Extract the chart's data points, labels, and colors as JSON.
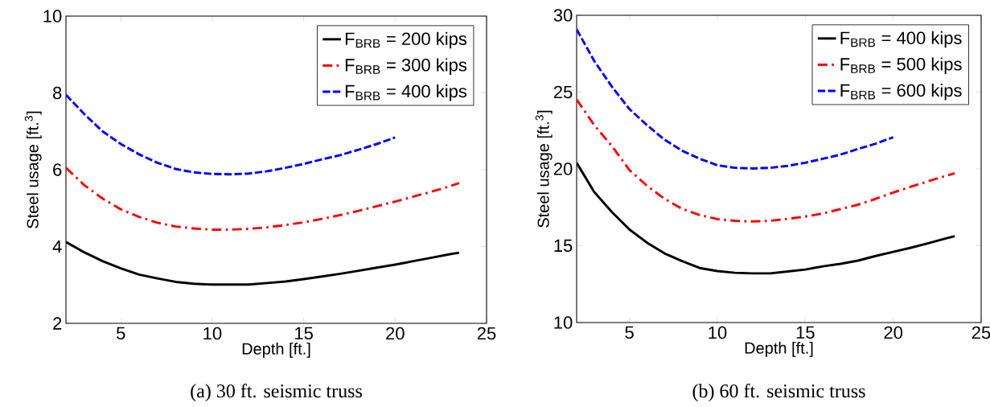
{
  "chart_data": [
    {
      "type": "line",
      "title": "(a) 30 ft. seismic truss",
      "xlabel": "Depth [ft.]",
      "ylabel": "Steel usage [ft.$^{3}$]",
      "xlim": [
        2,
        25
      ],
      "ylim": [
        2,
        10
      ],
      "xticks": [
        5,
        10,
        15,
        20,
        25
      ],
      "yticks": [
        2,
        4,
        6,
        8,
        10
      ],
      "grid": false,
      "legend": "top right",
      "marker": "none",
      "x": [
        2,
        3,
        4,
        5,
        6,
        7,
        8,
        9,
        10,
        11,
        12,
        13,
        14,
        15,
        16,
        17,
        18,
        19,
        20,
        21,
        22,
        23,
        23.5
      ],
      "series": [
        {
          "name": "F$_{BRB}$ = 200 kips",
          "color": "#000000",
          "line_style": "solid",
          "values": [
            4.12,
            3.85,
            3.62,
            3.43,
            3.27,
            3.17,
            3.08,
            3.03,
            3.01,
            3.01,
            3.01,
            3.05,
            3.09,
            3.15,
            3.22,
            3.29,
            3.37,
            3.45,
            3.53,
            3.62,
            3.71,
            3.8,
            3.84
          ]
        },
        {
          "name": "F$_{BRB}$ = 300 kips",
          "color": "#ff0000",
          "line_style": "dashdot",
          "values": [
            6.05,
            5.6,
            5.25,
            4.97,
            4.77,
            4.62,
            4.52,
            4.47,
            4.44,
            4.44,
            4.46,
            4.5,
            4.56,
            4.63,
            4.72,
            4.82,
            4.93,
            5.05,
            5.17,
            5.3,
            5.43,
            5.57,
            5.65
          ]
        },
        {
          "name": "F$_{BRB}$ = 400 kips",
          "color": "#0000ff",
          "line_style": "dashed",
          "values": [
            7.95,
            7.45,
            7.0,
            6.67,
            6.4,
            6.18,
            6.02,
            5.93,
            5.89,
            5.88,
            5.9,
            5.96,
            6.05,
            6.15,
            6.27,
            6.38,
            6.52,
            6.67,
            6.84,
            null,
            null,
            null,
            null
          ]
        }
      ]
    },
    {
      "type": "line",
      "title": "(b) 60 ft. seismic truss",
      "xlabel": "Depth [ft.]",
      "ylabel": "Steel usage [ft.$^{3}$]",
      "xlim": [
        2,
        25
      ],
      "ylim": [
        10,
        30
      ],
      "xticks": [
        5,
        10,
        15,
        20,
        25
      ],
      "yticks": [
        10,
        15,
        20,
        25,
        30
      ],
      "grid": false,
      "legend": "top right",
      "marker": "none",
      "x": [
        2,
        3,
        4,
        5,
        6,
        7,
        8,
        9,
        10,
        11,
        12,
        13,
        14,
        15,
        16,
        17,
        18,
        19,
        20,
        21,
        22,
        23,
        23.5
      ],
      "series": [
        {
          "name": "F$_{BRB}$ = 400 kips",
          "color": "#000000",
          "line_style": "solid",
          "values": [
            20.4,
            18.5,
            17.2,
            16.06,
            15.2,
            14.5,
            14.0,
            13.55,
            13.35,
            13.24,
            13.2,
            13.2,
            13.32,
            13.45,
            13.66,
            13.82,
            14.03,
            14.33,
            14.6,
            14.87,
            15.16,
            15.48,
            15.62
          ]
        },
        {
          "name": "F$_{BRB}$ = 500 kips",
          "color": "#ff0000",
          "line_style": "dashdot",
          "values": [
            24.52,
            22.85,
            21.5,
            19.93,
            18.9,
            18.05,
            17.4,
            17.0,
            16.73,
            16.62,
            16.58,
            16.62,
            16.75,
            16.9,
            17.1,
            17.38,
            17.67,
            18.05,
            18.46,
            18.84,
            19.2,
            19.55,
            19.72
          ]
        },
        {
          "name": "F$_{BRB}$ = 600 kips",
          "color": "#0000ff",
          "line_style": "dashed",
          "values": [
            29.08,
            27.03,
            25.36,
            23.9,
            22.85,
            21.9,
            21.18,
            20.66,
            20.24,
            20.07,
            20.03,
            20.07,
            20.2,
            20.4,
            20.66,
            20.93,
            21.3,
            21.64,
            22.06,
            null,
            null,
            null,
            null
          ]
        }
      ]
    }
  ]
}
